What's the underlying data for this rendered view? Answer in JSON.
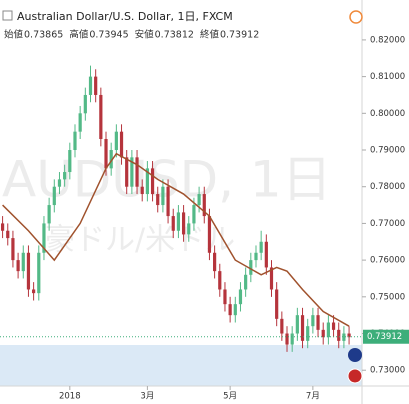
{
  "chart_data": {
    "type": "candlestick",
    "title": "Australian Dollar/U.S. Dollar, 1日, FXCM",
    "header": [
      {
        "label": "始値",
        "value": 0.73865
      },
      {
        "label": "高値",
        "value": 0.73945
      },
      {
        "label": "安値",
        "value": 0.73812
      },
      {
        "label": "終値",
        "value": 0.73912
      }
    ],
    "watermark": [
      "AUDUSD, 1日",
      "豪ドル/米ドル"
    ],
    "up_color": "#53b987",
    "down_color": "#b5343c",
    "ma_color": "#a0522d",
    "last_color": "#3dae7a",
    "ylim": [
      0.7257,
      0.8227
    ],
    "yticks": [
      {
        "value": 0.73,
        "label": "0.73000"
      },
      {
        "value": 0.74,
        "label": "0.74000"
      },
      {
        "value": 0.75,
        "label": "0.75000"
      },
      {
        "value": 0.76,
        "label": "0.76000"
      },
      {
        "value": 0.77,
        "label": "0.77000"
      },
      {
        "value": 0.78,
        "label": "0.78000"
      },
      {
        "value": 0.79,
        "label": "0.79000"
      },
      {
        "value": 0.8,
        "label": "0.80000"
      },
      {
        "value": 0.81,
        "label": "0.81000"
      },
      {
        "value": 0.82,
        "label": "0.82000"
      }
    ],
    "xlim": [
      -0.5,
      69.5
    ],
    "xticks": [
      {
        "value": 13,
        "label": "2018"
      },
      {
        "value": 28,
        "label": "3月"
      },
      {
        "value": 44,
        "label": "5月"
      },
      {
        "value": 60,
        "label": "7月"
      }
    ],
    "last_price": 0.73912,
    "ohlc": [
      [
        0.77,
        0.772,
        0.766,
        0.768
      ],
      [
        0.768,
        0.77,
        0.764,
        0.766
      ],
      [
        0.766,
        0.768,
        0.758,
        0.76
      ],
      [
        0.76,
        0.762,
        0.755,
        0.757
      ],
      [
        0.757,
        0.764,
        0.755,
        0.762
      ],
      [
        0.762,
        0.764,
        0.75,
        0.752
      ],
      [
        0.752,
        0.754,
        0.749,
        0.751
      ],
      [
        0.751,
        0.764,
        0.749,
        0.762
      ],
      [
        0.762,
        0.772,
        0.76,
        0.77
      ],
      [
        0.77,
        0.777,
        0.768,
        0.775
      ],
      [
        0.775,
        0.782,
        0.773,
        0.78
      ],
      [
        0.78,
        0.784,
        0.778,
        0.782
      ],
      [
        0.782,
        0.786,
        0.78,
        0.784
      ],
      [
        0.784,
        0.792,
        0.782,
        0.79
      ],
      [
        0.79,
        0.797,
        0.788,
        0.795
      ],
      [
        0.795,
        0.802,
        0.793,
        0.8
      ],
      [
        0.8,
        0.807,
        0.798,
        0.805
      ],
      [
        0.805,
        0.813,
        0.803,
        0.81
      ],
      [
        0.81,
        0.812,
        0.803,
        0.805
      ],
      [
        0.805,
        0.807,
        0.791,
        0.793
      ],
      [
        0.793,
        0.795,
        0.783,
        0.785
      ],
      [
        0.785,
        0.792,
        0.783,
        0.79
      ],
      [
        0.79,
        0.797,
        0.788,
        0.795
      ],
      [
        0.795,
        0.797,
        0.786,
        0.788
      ],
      [
        0.788,
        0.79,
        0.778,
        0.78
      ],
      [
        0.78,
        0.79,
        0.778,
        0.788
      ],
      [
        0.788,
        0.79,
        0.778,
        0.78
      ],
      [
        0.78,
        0.782,
        0.776,
        0.778
      ],
      [
        0.778,
        0.787,
        0.776,
        0.785
      ],
      [
        0.785,
        0.787,
        0.776,
        0.778
      ],
      [
        0.778,
        0.78,
        0.773,
        0.775
      ],
      [
        0.775,
        0.782,
        0.773,
        0.78
      ],
      [
        0.78,
        0.782,
        0.77,
        0.772
      ],
      [
        0.772,
        0.774,
        0.766,
        0.768
      ],
      [
        0.768,
        0.775,
        0.766,
        0.773
      ],
      [
        0.773,
        0.775,
        0.765,
        0.767
      ],
      [
        0.767,
        0.772,
        0.765,
        0.77
      ],
      [
        0.77,
        0.777,
        0.768,
        0.775
      ],
      [
        0.775,
        0.78,
        0.773,
        0.778
      ],
      [
        0.778,
        0.78,
        0.77,
        0.772
      ],
      [
        0.772,
        0.774,
        0.76,
        0.762
      ],
      [
        0.762,
        0.764,
        0.755,
        0.757
      ],
      [
        0.757,
        0.759,
        0.75,
        0.752
      ],
      [
        0.752,
        0.754,
        0.746,
        0.748
      ],
      [
        0.748,
        0.75,
        0.743,
        0.745
      ],
      [
        0.745,
        0.75,
        0.743,
        0.748
      ],
      [
        0.748,
        0.754,
        0.746,
        0.752
      ],
      [
        0.752,
        0.758,
        0.75,
        0.756
      ],
      [
        0.756,
        0.762,
        0.754,
        0.76
      ],
      [
        0.76,
        0.764,
        0.758,
        0.762
      ],
      [
        0.762,
        0.768,
        0.76,
        0.765
      ],
      [
        0.765,
        0.767,
        0.756,
        0.758
      ],
      [
        0.758,
        0.76,
        0.75,
        0.752
      ],
      [
        0.752,
        0.754,
        0.742,
        0.744
      ],
      [
        0.744,
        0.746,
        0.738,
        0.74
      ],
      [
        0.74,
        0.742,
        0.735,
        0.737
      ],
      [
        0.737,
        0.742,
        0.735,
        0.74
      ],
      [
        0.74,
        0.747,
        0.738,
        0.745
      ],
      [
        0.745,
        0.747,
        0.736,
        0.738
      ],
      [
        0.738,
        0.744,
        0.736,
        0.742
      ],
      [
        0.742,
        0.747,
        0.74,
        0.745
      ],
      [
        0.745,
        0.747,
        0.739,
        0.741
      ],
      [
        0.741,
        0.743,
        0.737,
        0.739
      ],
      [
        0.739,
        0.745,
        0.737,
        0.743
      ],
      [
        0.743,
        0.745,
        0.739,
        0.741
      ],
      [
        0.741,
        0.743,
        0.736,
        0.738
      ],
      [
        0.738,
        0.742,
        0.736,
        0.74
      ],
      [
        0.74,
        0.742,
        0.737,
        0.739
      ]
    ],
    "ma": {
      "x": [
        0,
        5,
        10,
        15,
        20,
        22,
        26,
        30,
        35,
        40,
        45,
        50,
        53,
        55,
        58,
        62,
        67
      ],
      "values": [
        0.775,
        0.768,
        0.76,
        0.77,
        0.785,
        0.789,
        0.786,
        0.782,
        0.778,
        0.772,
        0.76,
        0.756,
        0.758,
        0.757,
        0.752,
        0.746,
        0.742
      ]
    }
  }
}
